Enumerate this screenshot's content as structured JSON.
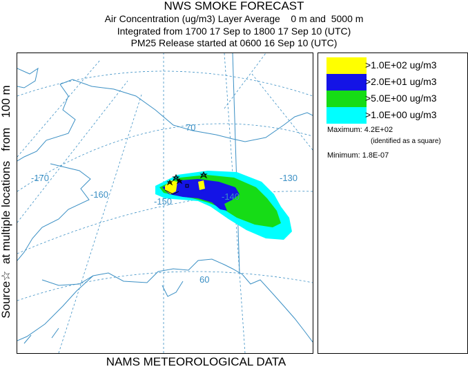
{
  "header": {
    "title": "NWS SMOKE FORECAST",
    "line2": "Air Concentration (ug/m3) Layer Average    0 m and  5000 m",
    "line3": "Integrated from 1700 17 Sep to 1800 17 Sep 10 (UTC)",
    "line4": "PM25 Release started at 0600 16 Sep 10 (UTC)"
  },
  "side_label": "Source☆  at multiple locations   from   100 m",
  "footer": "NAMS METEOROLOGICAL DATA",
  "map": {
    "graticule_labels": {
      "lon_170": "-170",
      "lon_160": "-160",
      "lon_150": "-150",
      "lon_140": "-140",
      "lon_130": "-130",
      "lat_70": "70",
      "lat_60": "60"
    },
    "colors": {
      "coast": "#3a8fc4",
      "graticule": "#3a8fc4",
      "level1": "#ffff00",
      "level2": "#1414e6",
      "level3": "#16dc16",
      "level4": "#00ffff"
    }
  },
  "legend": {
    "items": [
      {
        "label": ">1.0E+02 ug/m3",
        "color": "#ffff00"
      },
      {
        "label": ">2.0E+01 ug/m3",
        "color": "#1414e6"
      },
      {
        "label": ">5.0E+00 ug/m3",
        "color": "#16dc16"
      },
      {
        "label": ">1.0E+00 ug/m3",
        "color": "#00ffff"
      }
    ],
    "maximum": "Maximum: 4.2E+02",
    "maximum_note": "(identified as a square)",
    "minimum": "Minimum: 1.8E-07"
  }
}
